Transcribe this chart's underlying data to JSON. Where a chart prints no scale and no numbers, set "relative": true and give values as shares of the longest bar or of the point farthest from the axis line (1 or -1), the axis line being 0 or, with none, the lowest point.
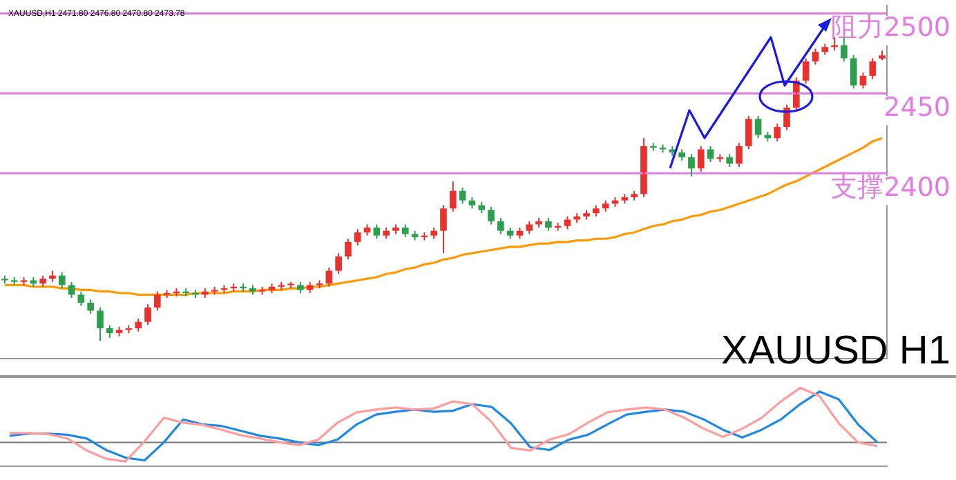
{
  "chart_data": [
    {
      "type": "candlestick",
      "legend": false,
      "grid": false,
      "tick_labels": false,
      "categories": [
        null,
        null,
        null,
        null,
        null,
        null,
        null,
        null,
        null,
        null,
        null,
        null,
        null,
        null,
        null,
        null,
        null,
        null,
        null,
        null,
        null,
        null,
        null,
        null,
        null,
        null,
        null,
        null,
        null,
        null,
        null,
        null,
        null,
        null,
        null,
        null,
        null,
        null,
        null,
        null,
        null,
        null,
        null,
        null,
        null,
        null,
        null,
        null,
        null,
        null,
        null,
        null,
        null,
        null,
        null,
        null,
        null,
        null,
        null,
        null,
        null,
        null,
        null,
        null,
        null,
        null,
        null,
        null,
        null,
        null,
        null,
        null,
        null,
        null,
        null,
        null,
        null,
        null,
        null,
        null,
        null,
        null,
        null,
        null,
        null,
        null,
        null,
        null,
        null,
        null,
        null,
        null,
        null
      ],
      "ohlc": [
        [
          2334,
          2336,
          2331,
          2333
        ],
        [
          2333,
          2335,
          2330,
          2332
        ],
        [
          2332,
          2335,
          2330,
          2333
        ],
        [
          2333,
          2335,
          2329,
          2331
        ],
        [
          2331,
          2336,
          2329,
          2334
        ],
        [
          2334,
          2339,
          2332,
          2336
        ],
        [
          2336,
          2338,
          2328,
          2330
        ],
        [
          2330,
          2332,
          2322,
          2324
        ],
        [
          2324,
          2326,
          2317,
          2319
        ],
        [
          2319,
          2321,
          2312,
          2314
        ],
        [
          2314,
          2316,
          2295,
          2303
        ],
        [
          2303,
          2305,
          2297,
          2300
        ],
        [
          2300,
          2304,
          2298,
          2302
        ],
        [
          2302,
          2305,
          2300,
          2303
        ],
        [
          2303,
          2309,
          2301,
          2307
        ],
        [
          2307,
          2318,
          2305,
          2316
        ],
        [
          2316,
          2326,
          2314,
          2324
        ],
        [
          2324,
          2327,
          2322,
          2325
        ],
        [
          2325,
          2328,
          2323,
          2326
        ],
        [
          2326,
          2328,
          2323,
          2325
        ],
        [
          2325,
          2327,
          2322,
          2324
        ],
        [
          2324,
          2328,
          2322,
          2326
        ],
        [
          2326,
          2329,
          2324,
          2327
        ],
        [
          2327,
          2330,
          2325,
          2328
        ],
        [
          2328,
          2331,
          2326,
          2329
        ],
        [
          2329,
          2331,
          2326,
          2328
        ],
        [
          2328,
          2330,
          2324,
          2326
        ],
        [
          2326,
          2329,
          2324,
          2327
        ],
        [
          2327,
          2331,
          2325,
          2329
        ],
        [
          2329,
          2332,
          2327,
          2330
        ],
        [
          2330,
          2332,
          2328,
          2330
        ],
        [
          2330,
          2332,
          2325,
          2327
        ],
        [
          2327,
          2332,
          2325,
          2330
        ],
        [
          2330,
          2333,
          2328,
          2331
        ],
        [
          2331,
          2341,
          2329,
          2339
        ],
        [
          2339,
          2350,
          2337,
          2348
        ],
        [
          2348,
          2359,
          2346,
          2357
        ],
        [
          2357,
          2365,
          2355,
          2363
        ],
        [
          2363,
          2368,
          2361,
          2366
        ],
        [
          2366,
          2368,
          2359,
          2361
        ],
        [
          2361,
          2366,
          2359,
          2364
        ],
        [
          2364,
          2368,
          2362,
          2366
        ],
        [
          2366,
          2368,
          2360,
          2362
        ],
        [
          2362,
          2364,
          2358,
          2360
        ],
        [
          2360,
          2363,
          2358,
          2361
        ],
        [
          2361,
          2366,
          2359,
          2364
        ],
        [
          2364,
          2380,
          2350,
          2378
        ],
        [
          2378,
          2395,
          2376,
          2389
        ],
        [
          2389,
          2391,
          2381,
          2383
        ],
        [
          2383,
          2385,
          2378,
          2380
        ],
        [
          2380,
          2382,
          2375,
          2377
        ],
        [
          2377,
          2379,
          2368,
          2370
        ],
        [
          2370,
          2372,
          2362,
          2364
        ],
        [
          2364,
          2366,
          2359,
          2361
        ],
        [
          2361,
          2366,
          2359,
          2364
        ],
        [
          2364,
          2370,
          2362,
          2368
        ],
        [
          2368,
          2372,
          2366,
          2370
        ],
        [
          2370,
          2372,
          2364,
          2366
        ],
        [
          2366,
          2369,
          2364,
          2367
        ],
        [
          2367,
          2373,
          2365,
          2371
        ],
        [
          2371,
          2375,
          2369,
          2373
        ],
        [
          2373,
          2377,
          2371,
          2375
        ],
        [
          2375,
          2380,
          2373,
          2378
        ],
        [
          2378,
          2383,
          2376,
          2381
        ],
        [
          2381,
          2385,
          2379,
          2383
        ],
        [
          2383,
          2387,
          2381,
          2385
        ],
        [
          2385,
          2389,
          2383,
          2387
        ],
        [
          2387,
          2422,
          2385,
          2417
        ],
        [
          2417,
          2419,
          2414,
          2416
        ],
        [
          2416,
          2418,
          2413,
          2415
        ],
        [
          2415,
          2417,
          2411,
          2413
        ],
        [
          2413,
          2415,
          2408,
          2410
        ],
        [
          2410,
          2412,
          2398,
          2403
        ],
        [
          2403,
          2417,
          2401,
          2415
        ],
        [
          2415,
          2417,
          2407,
          2409
        ],
        [
          2409,
          2412,
          2407,
          2410
        ],
        [
          2410,
          2412,
          2404,
          2406
        ],
        [
          2406,
          2419,
          2404,
          2417
        ],
        [
          2417,
          2436,
          2415,
          2434
        ],
        [
          2434,
          2436,
          2422,
          2424
        ],
        [
          2424,
          2426,
          2420,
          2422
        ],
        [
          2422,
          2431,
          2420,
          2429
        ],
        [
          2429,
          2443,
          2427,
          2441
        ],
        [
          2441,
          2460,
          2439,
          2458
        ],
        [
          2458,
          2472,
          2456,
          2470
        ],
        [
          2470,
          2478,
          2468,
          2476
        ],
        [
          2476,
          2481,
          2474,
          2479
        ],
        [
          2479,
          2485,
          2477,
          2483
        ],
        [
          2483,
          2485,
          2470,
          2472
        ],
        [
          2472,
          2474,
          2453,
          2455
        ],
        [
          2455,
          2463,
          2453,
          2461
        ],
        [
          2461,
          2472,
          2459,
          2470
        ],
        [
          2471.8,
          2476.8,
          2470.8,
          2473.78
        ]
      ],
      "colors": [
        "#2e9e4f",
        "#2e9e4f",
        "#e8322e",
        "#2e9e4f",
        "#e8322e",
        "#e8322e",
        "#2e9e4f",
        "#2e9e4f",
        "#2e9e4f",
        "#2e9e4f",
        "#2e9e4f",
        "#2e9e4f",
        "#e8322e",
        "#e8322e",
        "#e8322e",
        "#e8322e",
        "#e8322e",
        "#e8322e",
        "#e8322e",
        "#2e9e4f",
        "#2e9e4f",
        "#e8322e",
        "#e8322e",
        "#e8322e",
        "#e8322e",
        "#2e9e4f",
        "#2e9e4f",
        "#e8322e",
        "#e8322e",
        "#e8322e",
        "#e8322e",
        "#2e9e4f",
        "#e8322e",
        "#e8322e",
        "#e8322e",
        "#e8322e",
        "#e8322e",
        "#e8322e",
        "#e8322e",
        "#2e9e4f",
        "#e8322e",
        "#e8322e",
        "#2e9e4f",
        "#2e9e4f",
        "#e8322e",
        "#e8322e",
        "#e8322e",
        "#e8322e",
        "#2e9e4f",
        "#2e9e4f",
        "#2e9e4f",
        "#2e9e4f",
        "#2e9e4f",
        "#2e9e4f",
        "#e8322e",
        "#e8322e",
        "#e8322e",
        "#2e9e4f",
        "#e8322e",
        "#e8322e",
        "#e8322e",
        "#e8322e",
        "#e8322e",
        "#e8322e",
        "#e8322e",
        "#e8322e",
        "#e8322e",
        "#e8322e",
        "#2e9e4f",
        "#2e9e4f",
        "#2e9e4f",
        "#2e9e4f",
        "#2e9e4f",
        "#e8322e",
        "#2e9e4f",
        "#e8322e",
        "#2e9e4f",
        "#e8322e",
        "#e8322e",
        "#2e9e4f",
        "#2e9e4f",
        "#e8322e",
        "#e8322e",
        "#e8322e",
        "#e8322e",
        "#e8322e",
        "#e8322e",
        "#e8322e",
        "#2e9e4f",
        "#2e9e4f",
        "#e8322e",
        "#e8322e",
        "#e8322e"
      ],
      "series": [
        {
          "type": "line",
          "color": "#ff9900",
          "marker": "none",
          "values": [
            2330,
            2330,
            2330,
            2329,
            2329,
            2329,
            2328,
            2328,
            2327,
            2327,
            2326,
            2326,
            2325,
            2325,
            2324,
            2324,
            2324,
            2324,
            2324,
            2324,
            2325,
            2325,
            2325,
            2325,
            2326,
            2326,
            2326,
            2327,
            2327,
            2327,
            2328,
            2328,
            2329,
            2329,
            2330,
            2331,
            2332,
            2333,
            2334,
            2335,
            2337,
            2338,
            2340,
            2341,
            2343,
            2344,
            2346,
            2347,
            2349,
            2350,
            2351,
            2352,
            2353,
            2354,
            2354,
            2355,
            2356,
            2356,
            2357,
            2357,
            2358,
            2358,
            2359,
            2359,
            2360,
            2362,
            2363,
            2365,
            2367,
            2368,
            2370,
            2371,
            2373,
            2374,
            2376,
            2377,
            2379,
            2381,
            2383,
            2385,
            2387,
            2390,
            2393,
            2395,
            2398,
            2401,
            2404,
            2407,
            2410,
            2413,
            2416,
            2420,
            2422
          ]
        }
      ],
      "ylim": [
        2284,
        2505
      ],
      "ref_lines": [
        {
          "axis": "y",
          "value": 2500,
          "label": "阻力2500",
          "color": "#e27de2"
        },
        {
          "axis": "y",
          "value": 2450,
          "label": "2450",
          "color": "#e27de2"
        },
        {
          "axis": "y",
          "value": 2400,
          "label": "支撑2400",
          "color": "#e27de2"
        }
      ],
      "annotations": [
        "XAUUSD,H1 2471.80 2476.80 2470.80 2473.78",
        "XAUUSD H1"
      ]
    },
    {
      "type": "line",
      "relative": true,
      "legend": false,
      "tick_labels": false,
      "marker": "none",
      "categories": [
        null,
        null,
        null,
        null,
        null,
        null,
        null,
        null,
        null,
        null,
        null,
        null,
        null,
        null,
        null,
        null,
        null,
        null,
        null,
        null,
        null,
        null,
        null,
        null,
        null,
        null,
        null,
        null,
        null,
        null,
        null,
        null,
        null,
        null,
        null,
        null,
        null,
        null,
        null,
        null,
        null,
        null,
        null,
        null,
        null,
        null
      ],
      "series": [
        {
          "color": "#ff9c9c",
          "values": [
            0.17,
            0.17,
            0.15,
            0.07,
            -0.15,
            -0.3,
            -0.35,
            0.02,
            0.45,
            0.36,
            0.32,
            0.23,
            0.13,
            0.07,
            0,
            -0.05,
            0.05,
            0.36,
            0.55,
            0.6,
            0.64,
            0.6,
            0.62,
            0.75,
            0.7,
            0.37,
            -0.1,
            -0.15,
            0.05,
            0.15,
            0.36,
            0.55,
            0.6,
            0.64,
            0.6,
            0.45,
            0.25,
            0.1,
            0.25,
            0.45,
            0.75,
            1,
            0.85,
            0.35,
            0,
            -0.07
          ]
        },
        {
          "color": "#1e88e5",
          "values": [
            0.12,
            0.16,
            0.16,
            0.14,
            0.07,
            -0.14,
            -0.28,
            -0.33,
            0,
            0.42,
            0.33,
            0.3,
            0.21,
            0.12,
            0.07,
            0,
            -0.05,
            0.05,
            0.33,
            0.51,
            0.56,
            0.6,
            0.56,
            0.58,
            0.7,
            0.65,
            0.35,
            -0.09,
            -0.14,
            0.05,
            0.14,
            0.33,
            0.51,
            0.56,
            0.6,
            0.56,
            0.42,
            0.23,
            0.09,
            0.23,
            0.42,
            0.7,
            0.93,
            0.79,
            0.33,
            0
          ]
        }
      ]
    }
  ]
}
